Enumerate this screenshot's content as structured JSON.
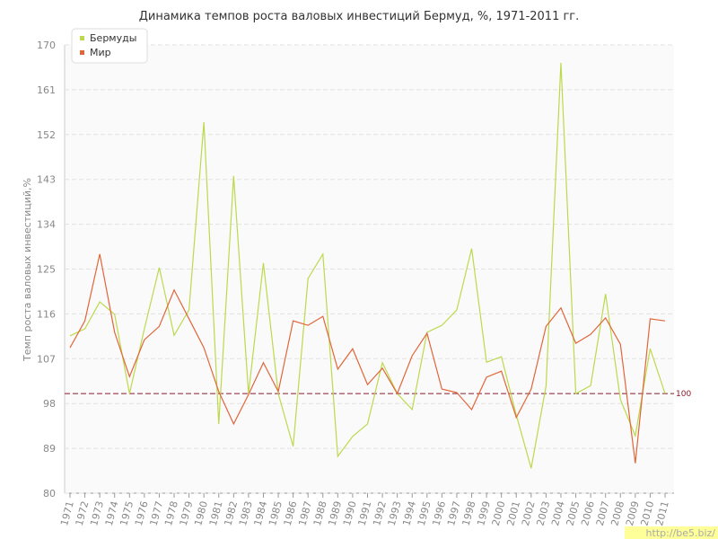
{
  "chart_data": {
    "type": "line",
    "title": "Динамика темпов роста валовых инвестиций Бермуд, %, 1971-2011 гг.",
    "y_label": "Темп роста валовых инвестиций,%",
    "categories": [
      "1971",
      "1972",
      "1973",
      "1974",
      "1975",
      "1976",
      "1977",
      "1978",
      "1979",
      "1980",
      "1981",
      "1982",
      "1983",
      "1984",
      "1985",
      "1986",
      "1987",
      "1988",
      "1989",
      "1990",
      "1991",
      "1992",
      "1993",
      "1994",
      "1995",
      "1996",
      "1997",
      "1998",
      "1999",
      "2000",
      "2001",
      "2002",
      "2003",
      "2004",
      "2005",
      "2006",
      "2007",
      "2008",
      "2009",
      "2010",
      "2011"
    ],
    "series": [
      {
        "name": "Бермуды",
        "color": "#bcd94c",
        "values": [
          111.6,
          113,
          118.4,
          115.9,
          100,
          113,
          125.3,
          111.7,
          116.8,
          154.5,
          93.9,
          143.7,
          100,
          126.2,
          100,
          89.4,
          123.1,
          128,
          87.4,
          91.4,
          93.9,
          106.2,
          100,
          96.8,
          112.3,
          113.7,
          116.8,
          129.1,
          106.3,
          107.4,
          95.7,
          85,
          101.5,
          166.4,
          100,
          101.6,
          120,
          98.8,
          91.5,
          109,
          100
        ]
      },
      {
        "name": "Мир",
        "color": "#e0663a",
        "values": [
          109.2,
          114.6,
          128,
          112.3,
          103.4,
          110.8,
          113.5,
          120.8,
          115,
          109.2,
          100.4,
          93.9,
          99.8,
          106.2,
          100.4,
          114.6,
          113.7,
          115.5,
          104.9,
          109,
          101.8,
          105.1,
          100,
          107.6,
          112.1,
          100.9,
          100.2,
          96.8,
          103.3,
          104.5,
          95.2,
          100.9,
          113.5,
          117.2,
          110.1,
          111.9,
          115.2,
          109.9,
          86,
          115,
          114.6
        ]
      }
    ],
    "ylim": [
      80,
      170
    ],
    "yticks": [
      80,
      89,
      98,
      107,
      116,
      125,
      134,
      143,
      152,
      161,
      170
    ],
    "grid": true,
    "legend": "top-left",
    "reference_line": {
      "value": 100,
      "color": "#8b1a2b"
    },
    "watermark": "http://be5.biz/"
  }
}
